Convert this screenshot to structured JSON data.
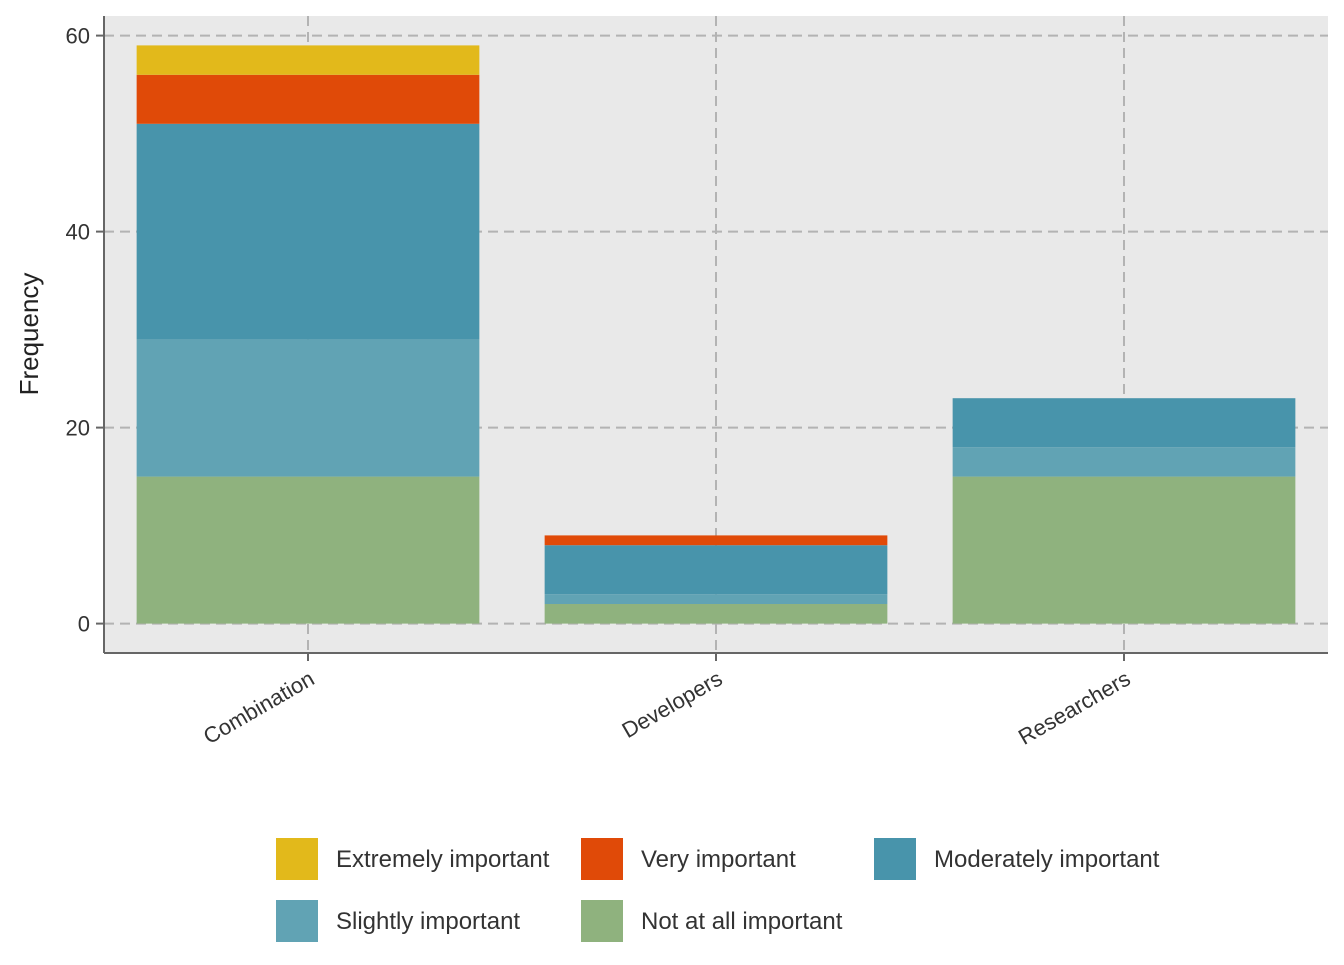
{
  "chart_data": {
    "type": "bar",
    "stacked": true,
    "title": "",
    "xlabel": "",
    "ylabel": "Frequency",
    "ylim": [
      -3,
      62
    ],
    "yticks": [
      0,
      20,
      40,
      60
    ],
    "grid": true,
    "legend_position": "bottom",
    "categories": [
      "Combination",
      "Developers",
      "Researchers"
    ],
    "series": [
      {
        "name": "Not at all important",
        "color": "#8FB27E",
        "values": [
          15,
          2,
          15
        ]
      },
      {
        "name": "Slightly important",
        "color": "#61A3B4",
        "values": [
          14,
          1,
          3
        ]
      },
      {
        "name": "Moderately important",
        "color": "#4894AB",
        "values": [
          22,
          5,
          5
        ]
      },
      {
        "name": "Very important",
        "color": "#E04A08",
        "values": [
          5,
          1,
          0
        ]
      },
      {
        "name": "Extremely important",
        "color": "#E2B91B",
        "values": [
          3,
          0,
          0
        ]
      }
    ],
    "legend_order": [
      "Extremely important",
      "Very important",
      "Moderately important",
      "Slightly important",
      "Not at all important"
    ],
    "colors": {
      "panel": "#E9E9E9",
      "axis": "#666666"
    }
  }
}
